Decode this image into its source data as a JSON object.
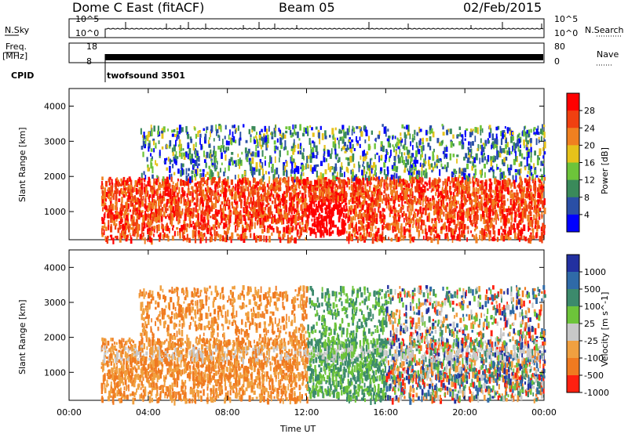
{
  "header": {
    "station": "Dome C East (fitACF)",
    "beam": "Beam 05",
    "date": "02/Feb/2015"
  },
  "strips": {
    "nsky_label": "N.Sky",
    "nsky_top": "10^5",
    "nsky_bot": "10^0",
    "nsearch_label": "N.Search",
    "nsearch_top": "10^5",
    "nsearch_bot": "10^0",
    "freq_label_1": "Freq.",
    "freq_label_2": "[MHz]",
    "freq_top": "18",
    "freq_bot": "8",
    "nave_label": "Nave",
    "nave_top": "80",
    "nave_bot": "0",
    "cpid_label": "CPID",
    "cpid_value": "twofsound 3501"
  },
  "chart_data": [
    {
      "type": "heatmap",
      "name": "power",
      "ylabel": "Slant Range [km]",
      "ylim": [
        200,
        4500
      ],
      "yticks": [
        "1000",
        "2000",
        "3000",
        "4000"
      ],
      "xlim": [
        "00:00",
        "24:00"
      ],
      "colorbar_label": "Power [dB]",
      "colorbar_ticks": [
        "4",
        "8",
        "12",
        "16",
        "20",
        "24",
        "28"
      ],
      "colors": [
        "#0000ff",
        "#2a4fa6",
        "#3a8a5a",
        "#6dc43a",
        "#e6c21a",
        "#f08020",
        "#f04010",
        "#ff0000"
      ]
    },
    {
      "type": "heatmap",
      "name": "velocity",
      "ylabel": "Slant Range [km]",
      "ylim": [
        200,
        4500
      ],
      "yticks": [
        "1000",
        "2000",
        "3000",
        "4000"
      ],
      "xlim": [
        "00:00",
        "24:00"
      ],
      "xlabel": "Time UT",
      "xticks": [
        "00:00",
        "04:00",
        "08:00",
        "12:00",
        "16:00",
        "20:00",
        "00:00"
      ],
      "colorbar_label": "Velocity [m s^-1]",
      "colorbar_ticks": [
        "1000",
        "500",
        "100",
        "25",
        "-25",
        "-100",
        "-500",
        "-1000"
      ],
      "colors": [
        "#2230a0",
        "#2f6aa8",
        "#3c8a6c",
        "#6dc43a",
        "#c8c8c8",
        "#f0a040",
        "#f07a20",
        "#ff2010"
      ]
    }
  ]
}
